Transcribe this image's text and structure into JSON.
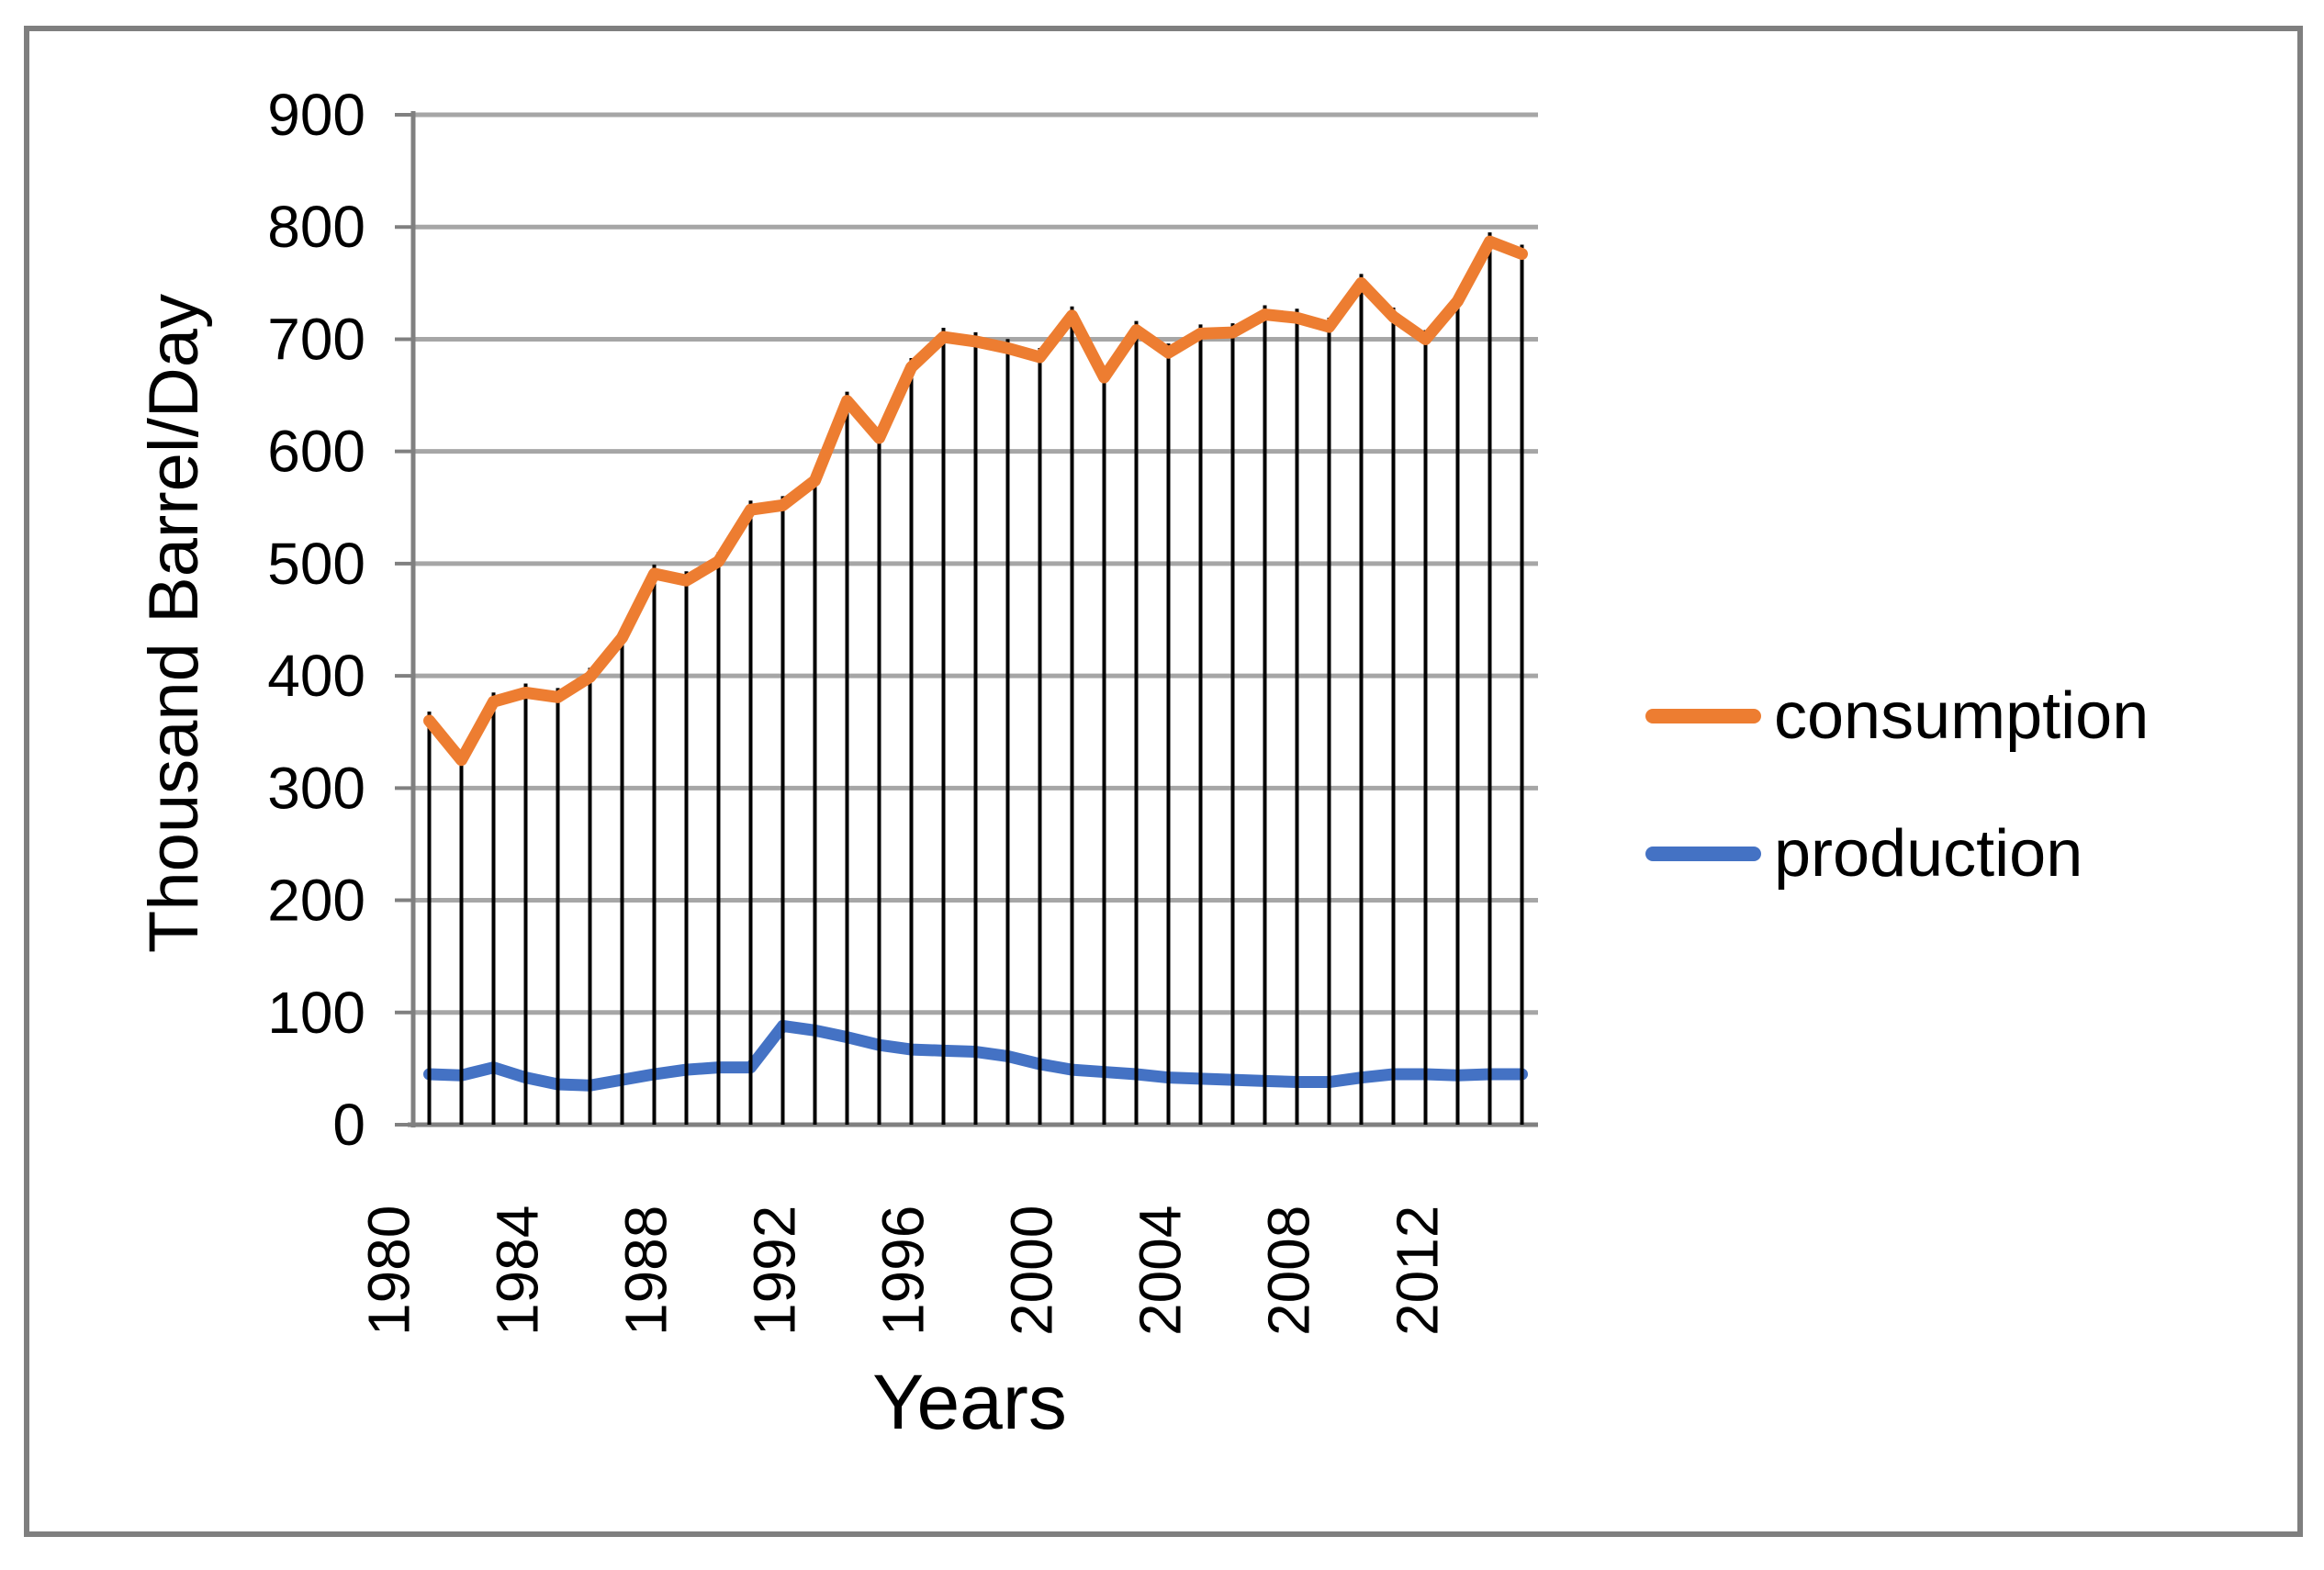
{
  "chart_data": {
    "type": "line",
    "title": "",
    "xlabel": "Years",
    "ylabel": "Thousand Barrel/Day",
    "x": [
      1980,
      1981,
      1982,
      1983,
      1984,
      1985,
      1986,
      1987,
      1988,
      1989,
      1990,
      1991,
      1992,
      1993,
      1994,
      1995,
      1996,
      1997,
      1998,
      1999,
      2000,
      2001,
      2002,
      2003,
      2004,
      2005,
      2006,
      2007,
      2008,
      2009,
      2010,
      2011,
      2012,
      2013,
      2014
    ],
    "x_tick_labels": [
      "1980",
      "1984",
      "1988",
      "1992",
      "1996",
      "2000",
      "2004",
      "2008",
      "2012"
    ],
    "x_tick_years": [
      1980,
      1984,
      1988,
      1992,
      1996,
      2000,
      2004,
      2008,
      2012
    ],
    "y_ticks": [
      0,
      100,
      200,
      300,
      400,
      500,
      600,
      700,
      800,
      900
    ],
    "ylim": [
      0,
      900
    ],
    "grid": true,
    "drop_lines": true,
    "legend_position": "right",
    "series": [
      {
        "name": "consumption",
        "color": "#ED7D31",
        "values": [
          360,
          325,
          377,
          385,
          381,
          399,
          434,
          491,
          485,
          502,
          548,
          552,
          574,
          645,
          612,
          675,
          702,
          698,
          692,
          684,
          721,
          666,
          708,
          688,
          705,
          706,
          722,
          719,
          711,
          750,
          720,
          700,
          734,
          787,
          776
        ]
      },
      {
        "name": "production",
        "color": "#4472C4",
        "values": [
          45,
          44,
          51,
          42,
          36,
          35,
          40,
          45,
          49,
          51,
          51,
          88,
          84,
          78,
          71,
          67,
          66,
          65,
          61,
          54,
          49,
          47,
          45,
          42,
          41,
          40,
          39,
          38,
          38,
          42,
          45,
          45,
          44,
          45,
          45
        ]
      }
    ]
  },
  "colors": {
    "gridline": "#A6A6A6",
    "axis": "#808080",
    "drop_line": "#000000",
    "frame_border": "#7F7F7F",
    "text": "#000000",
    "background": "#FFFFFF"
  }
}
